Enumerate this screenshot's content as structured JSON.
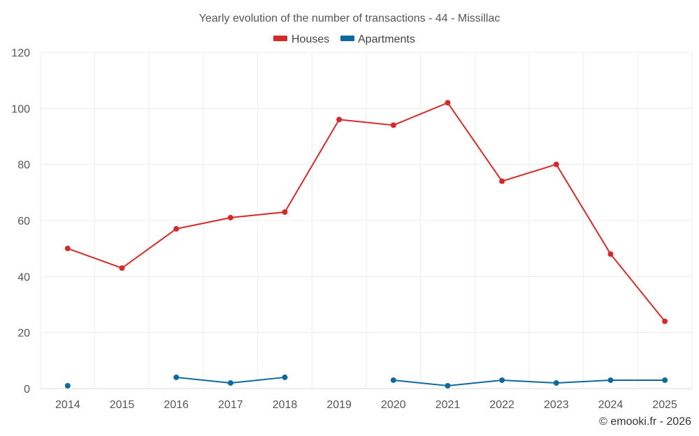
{
  "chart_data": {
    "type": "line",
    "title": "Yearly evolution of the number of transactions - 44 - Missillac",
    "categories": [
      "2014",
      "2015",
      "2016",
      "2017",
      "2018",
      "2019",
      "2020",
      "2021",
      "2022",
      "2023",
      "2024",
      "2025"
    ],
    "series": [
      {
        "name": "Houses",
        "color": "#d42a2a",
        "values": [
          50,
          43,
          57,
          61,
          63,
          96,
          94,
          102,
          74,
          80,
          48,
          24
        ]
      },
      {
        "name": "Apartments",
        "color": "#0e6a9c",
        "values": [
          1,
          null,
          4,
          2,
          4,
          null,
          3,
          1,
          3,
          2,
          3,
          3
        ]
      }
    ],
    "ylim": [
      0,
      120
    ],
    "yticks": [
      "0",
      "20",
      "40",
      "60",
      "80",
      "100",
      "120"
    ],
    "legend_position": "top-center",
    "grid": true,
    "xlabel": "",
    "ylabel": ""
  },
  "credit": "© emooki.fr - 2026"
}
